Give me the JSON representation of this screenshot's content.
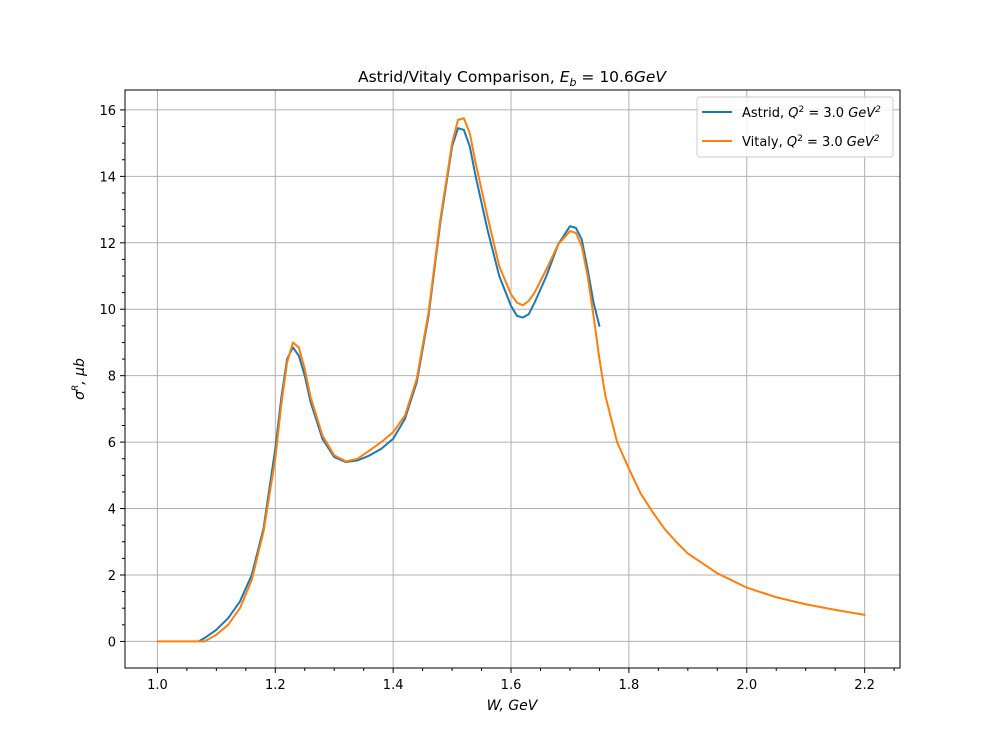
{
  "chart_data": {
    "type": "line",
    "title_parts": [
      "Astrid/Vitaly Comparison, ",
      "E",
      "b",
      " = 10.6",
      "GeV"
    ],
    "xlabel": "W, GeV",
    "ylabel_parts": [
      "σ",
      "R",
      ", μb"
    ],
    "xlim": [
      0.945,
      2.26
    ],
    "ylim": [
      -0.8,
      16.6
    ],
    "xticks": [
      1.0,
      1.2,
      1.4,
      1.6,
      1.8,
      2.0,
      2.2
    ],
    "xtick_labels": [
      "1.0",
      "1.2",
      "1.4",
      "1.6",
      "1.8",
      "2.0",
      "2.2"
    ],
    "yticks": [
      0,
      2,
      4,
      6,
      8,
      10,
      12,
      14,
      16
    ],
    "ytick_labels": [
      "0",
      "2",
      "4",
      "6",
      "8",
      "10",
      "12",
      "14",
      "16"
    ],
    "grid": true,
    "legend_position": "top-right",
    "series": [
      {
        "name_parts": [
          "Astrid, ",
          "Q",
          "2",
          " = 3.0",
          " GeV",
          "2"
        ],
        "color": "#1f77b4",
        "points": [
          [
            1.07,
            0.0
          ],
          [
            1.08,
            0.1
          ],
          [
            1.1,
            0.35
          ],
          [
            1.12,
            0.7
          ],
          [
            1.14,
            1.2
          ],
          [
            1.16,
            2.0
          ],
          [
            1.18,
            3.4
          ],
          [
            1.2,
            5.8
          ],
          [
            1.21,
            7.3
          ],
          [
            1.22,
            8.5
          ],
          [
            1.23,
            8.85
          ],
          [
            1.24,
            8.6
          ],
          [
            1.25,
            8.0
          ],
          [
            1.26,
            7.2
          ],
          [
            1.28,
            6.1
          ],
          [
            1.3,
            5.55
          ],
          [
            1.32,
            5.4
          ],
          [
            1.34,
            5.45
          ],
          [
            1.36,
            5.6
          ],
          [
            1.38,
            5.8
          ],
          [
            1.4,
            6.1
          ],
          [
            1.42,
            6.7
          ],
          [
            1.44,
            7.8
          ],
          [
            1.46,
            9.8
          ],
          [
            1.48,
            12.6
          ],
          [
            1.5,
            14.9
          ],
          [
            1.51,
            15.45
          ],
          [
            1.52,
            15.4
          ],
          [
            1.53,
            14.9
          ],
          [
            1.54,
            14.0
          ],
          [
            1.56,
            12.4
          ],
          [
            1.58,
            11.0
          ],
          [
            1.6,
            10.1
          ],
          [
            1.61,
            9.8
          ],
          [
            1.62,
            9.75
          ],
          [
            1.63,
            9.85
          ],
          [
            1.64,
            10.2
          ],
          [
            1.66,
            11.0
          ],
          [
            1.68,
            11.95
          ],
          [
            1.7,
            12.5
          ],
          [
            1.71,
            12.45
          ],
          [
            1.72,
            12.1
          ],
          [
            1.73,
            11.2
          ],
          [
            1.74,
            10.2
          ],
          [
            1.75,
            9.5
          ]
        ]
      },
      {
        "name_parts": [
          "Vitaly, ",
          "Q",
          "2",
          " = 3.0",
          " GeV",
          "2"
        ],
        "color": "#ff7f0e",
        "points": [
          [
            1.0,
            0.0
          ],
          [
            1.04,
            0.0
          ],
          [
            1.08,
            0.0
          ],
          [
            1.1,
            0.2
          ],
          [
            1.12,
            0.5
          ],
          [
            1.14,
            1.0
          ],
          [
            1.16,
            1.85
          ],
          [
            1.18,
            3.3
          ],
          [
            1.2,
            5.5
          ],
          [
            1.21,
            7.1
          ],
          [
            1.22,
            8.4
          ],
          [
            1.23,
            9.0
          ],
          [
            1.24,
            8.85
          ],
          [
            1.25,
            8.2
          ],
          [
            1.26,
            7.35
          ],
          [
            1.28,
            6.2
          ],
          [
            1.3,
            5.6
          ],
          [
            1.32,
            5.42
          ],
          [
            1.34,
            5.5
          ],
          [
            1.36,
            5.75
          ],
          [
            1.38,
            6.0
          ],
          [
            1.4,
            6.3
          ],
          [
            1.42,
            6.8
          ],
          [
            1.44,
            7.9
          ],
          [
            1.46,
            9.9
          ],
          [
            1.48,
            12.7
          ],
          [
            1.5,
            15.0
          ],
          [
            1.51,
            15.7
          ],
          [
            1.52,
            15.75
          ],
          [
            1.53,
            15.3
          ],
          [
            1.54,
            14.4
          ],
          [
            1.56,
            12.8
          ],
          [
            1.58,
            11.3
          ],
          [
            1.6,
            10.45
          ],
          [
            1.61,
            10.2
          ],
          [
            1.62,
            10.12
          ],
          [
            1.63,
            10.25
          ],
          [
            1.64,
            10.5
          ],
          [
            1.66,
            11.2
          ],
          [
            1.68,
            11.95
          ],
          [
            1.7,
            12.35
          ],
          [
            1.71,
            12.3
          ],
          [
            1.72,
            11.9
          ],
          [
            1.73,
            11.0
          ],
          [
            1.74,
            9.8
          ],
          [
            1.75,
            8.5
          ],
          [
            1.76,
            7.4
          ],
          [
            1.78,
            6.0
          ],
          [
            1.8,
            5.2
          ],
          [
            1.82,
            4.45
          ],
          [
            1.84,
            3.9
          ],
          [
            1.86,
            3.4
          ],
          [
            1.88,
            3.0
          ],
          [
            1.9,
            2.65
          ],
          [
            1.95,
            2.05
          ],
          [
            2.0,
            1.62
          ],
          [
            2.05,
            1.33
          ],
          [
            2.1,
            1.12
          ],
          [
            2.15,
            0.95
          ],
          [
            2.2,
            0.8
          ]
        ]
      }
    ]
  }
}
